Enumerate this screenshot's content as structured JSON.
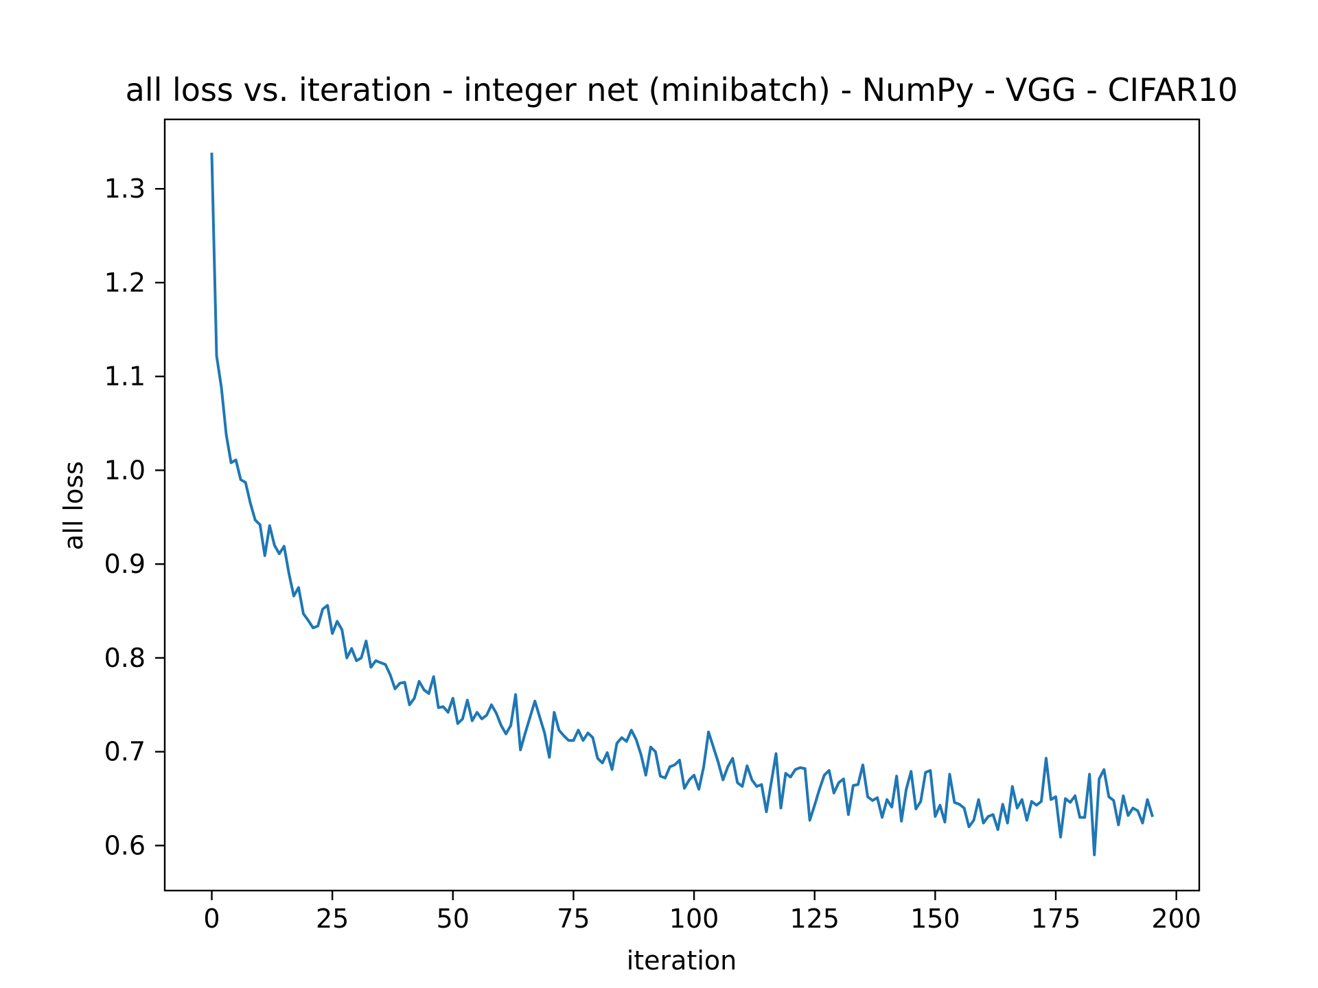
{
  "chart_data": {
    "type": "line",
    "title": "all loss vs. iteration - integer net (minibatch) - NumPy - VGG - CIFAR10",
    "xlabel": "iteration",
    "ylabel": "all loss",
    "xlim": [
      -9.75,
      204.75
    ],
    "ylim": [
      0.552,
      1.374
    ],
    "xticks": [
      0,
      25,
      50,
      75,
      100,
      125,
      150,
      175,
      200
    ],
    "yticks": [
      0.6,
      0.7,
      0.8,
      0.9,
      1.0,
      1.1,
      1.2,
      1.3
    ],
    "xtick_labels": [
      "0",
      "25",
      "50",
      "75",
      "100",
      "125",
      "150",
      "175",
      "200"
    ],
    "ytick_labels": [
      "0.6",
      "0.7",
      "0.8",
      "0.9",
      "1.0",
      "1.1",
      "1.2",
      "1.3"
    ],
    "grid": false,
    "line_color": "#1f77b4",
    "series": [
      {
        "values": [
          1.337,
          1.122,
          1.088,
          1.038,
          1.008,
          1.011,
          0.99,
          0.987,
          0.965,
          0.947,
          0.942,
          0.909,
          0.941,
          0.92,
          0.911,
          0.919,
          0.89,
          0.866,
          0.875,
          0.847,
          0.84,
          0.832,
          0.834,
          0.852,
          0.856,
          0.826,
          0.839,
          0.83,
          0.8,
          0.81,
          0.797,
          0.8,
          0.818,
          0.79,
          0.797,
          0.795,
          0.793,
          0.782,
          0.767,
          0.773,
          0.774,
          0.75,
          0.757,
          0.775,
          0.766,
          0.762,
          0.78,
          0.747,
          0.748,
          0.742,
          0.757,
          0.73,
          0.735,
          0.755,
          0.733,
          0.742,
          0.735,
          0.739,
          0.75,
          0.741,
          0.728,
          0.719,
          0.728,
          0.761,
          0.702,
          0.72,
          0.737,
          0.754,
          0.737,
          0.72,
          0.694,
          0.742,
          0.723,
          0.717,
          0.712,
          0.712,
          0.723,
          0.712,
          0.72,
          0.715,
          0.693,
          0.688,
          0.699,
          0.681,
          0.709,
          0.715,
          0.711,
          0.723,
          0.713,
          0.697,
          0.675,
          0.705,
          0.7,
          0.674,
          0.672,
          0.684,
          0.686,
          0.691,
          0.661,
          0.67,
          0.675,
          0.66,
          0.684,
          0.721,
          0.705,
          0.689,
          0.67,
          0.684,
          0.693,
          0.667,
          0.663,
          0.685,
          0.67,
          0.663,
          0.665,
          0.636,
          0.667,
          0.698,
          0.64,
          0.677,
          0.673,
          0.681,
          0.683,
          0.682,
          0.627,
          0.643,
          0.66,
          0.675,
          0.68,
          0.656,
          0.667,
          0.671,
          0.633,
          0.664,
          0.665,
          0.686,
          0.652,
          0.648,
          0.651,
          0.63,
          0.649,
          0.641,
          0.674,
          0.626,
          0.66,
          0.679,
          0.639,
          0.647,
          0.678,
          0.68,
          0.631,
          0.643,
          0.625,
          0.676,
          0.646,
          0.644,
          0.64,
          0.62,
          0.627,
          0.649,
          0.624,
          0.631,
          0.633,
          0.617,
          0.644,
          0.624,
          0.663,
          0.64,
          0.649,
          0.627,
          0.647,
          0.643,
          0.647,
          0.693,
          0.649,
          0.652,
          0.609,
          0.65,
          0.646,
          0.653,
          0.63,
          0.63,
          0.676,
          0.59,
          0.671,
          0.681,
          0.652,
          0.648,
          0.622,
          0.653,
          0.632,
          0.64,
          0.637,
          0.624,
          0.649,
          0.632
        ]
      }
    ]
  }
}
